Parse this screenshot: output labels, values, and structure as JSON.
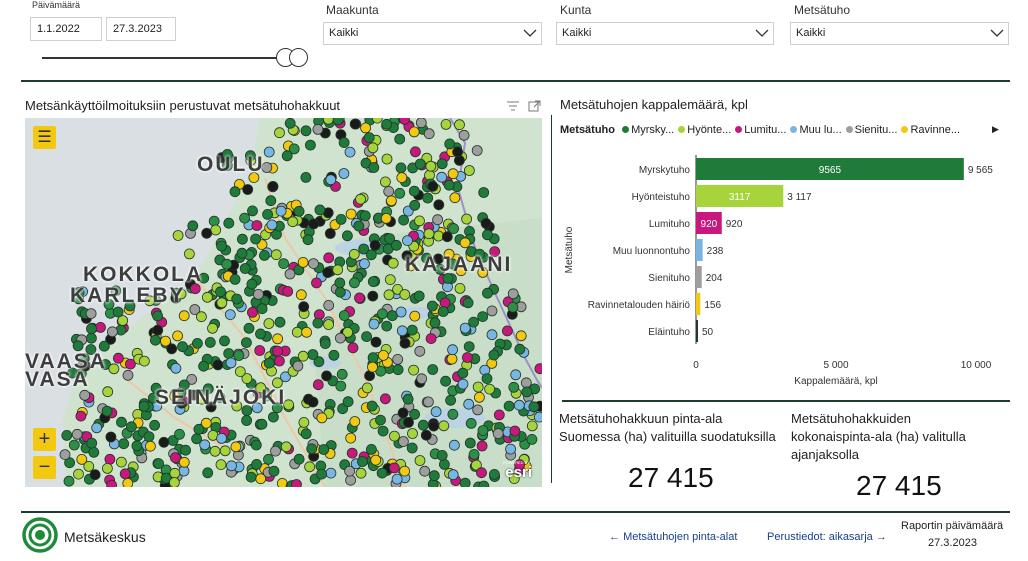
{
  "filters": {
    "date_label": "Päivämäärä",
    "date_start": "1.1.2022",
    "date_end": "27.3.2023",
    "maakunta": {
      "label": "Maakunta",
      "value": "Kaikki"
    },
    "kunta": {
      "label": "Kunta",
      "value": "Kaikki"
    },
    "metsatuho": {
      "label": "Metsätuho",
      "value": "Kaikki"
    }
  },
  "map": {
    "title": "Metsänkäyttöilmoituksiin perustuvat metsätuhohakkuut",
    "places": [
      "OULU",
      "KOKKOLA",
      "KARLEBY",
      "VAASA",
      "VASA",
      "KAJAANI",
      "SEINÄJOKI"
    ],
    "attribution": "esri",
    "attribution_small": "POWERED BY",
    "menu_icon": "hamburger-menu-icon",
    "zoom_in": "+",
    "zoom_out": "−"
  },
  "chart": {
    "title": "Metsätuhojen kappalemäärä, kpl",
    "legend_title": "Metsätuho",
    "legend_items": [
      {
        "label": "Myrsky...",
        "color": "#1e7b3a"
      },
      {
        "label": "Hyönte...",
        "color": "#a6d43a"
      },
      {
        "label": "Lumitu...",
        "color": "#c8177d"
      },
      {
        "label": "Muu lu...",
        "color": "#7ab6e4"
      },
      {
        "label": "Sienitu...",
        "color": "#9e9e9e"
      },
      {
        "label": "Ravinne...",
        "color": "#f2c811"
      }
    ]
  },
  "chart_data": {
    "type": "bar",
    "orientation": "horizontal",
    "title": "Metsätuhojen kappalemäärä, kpl",
    "xlabel": "Kappalemäärä, kpl",
    "ylabel": "Metsätuho",
    "categories": [
      "Myrskytuho",
      "Hyönteistuho",
      "Lumituho",
      "Muu luonnontuho",
      "Sienituho",
      "Ravinnetalouden häiriö",
      "Eläintuho"
    ],
    "values": [
      9565,
      3117,
      920,
      238,
      204,
      156,
      50
    ],
    "inside_labels": [
      "9565",
      "3117",
      "920",
      "",
      "",
      "",
      ""
    ],
    "outside_labels": [
      "9 565",
      "3 117",
      "920",
      "238",
      "204",
      "156",
      "50"
    ],
    "colors": [
      "#1e7b3a",
      "#a6d43a",
      "#c8177d",
      "#7ab6e4",
      "#9e9e9e",
      "#f2c811",
      "#1e3b2c"
    ],
    "xlim": [
      0,
      10000
    ],
    "xticks": [
      0,
      5000,
      10000
    ],
    "xtick_labels": [
      "0",
      "5 000",
      "10 000"
    ],
    "grid": false
  },
  "kpis": [
    {
      "title_lines": [
        "Metsätuhohakkuun pinta-ala",
        "Suomessa (ha) valituilla suodatuksilla"
      ],
      "value": "27 415"
    },
    {
      "title_lines": [
        "Metsätuhohakkuiden",
        "kokonaispinta-ala (ha) valitulla",
        "ajanjaksolla"
      ],
      "value": "27 415"
    }
  ],
  "footer": {
    "brand": "Metsäkeskus",
    "nav_back": "Metsätuhojen pinta-alat",
    "nav_forward": "Perustiedot: aikasarja",
    "report_date_label": "Raportin päivämäärä",
    "report_date": "27.3.2023"
  }
}
